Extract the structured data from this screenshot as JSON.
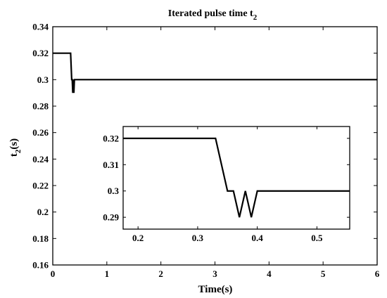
{
  "chart_data": [
    {
      "type": "line",
      "role": "main",
      "title": "Iterated pulse time t",
      "title_subscript": "2",
      "xlabel": "Time(s)",
      "ylabel": "t",
      "ylabel_subscript": "2",
      "ylabel_suffix": "(s)",
      "xlim": [
        0,
        6
      ],
      "ylim": [
        0.16,
        0.34
      ],
      "xticks": [
        0,
        1,
        2,
        3,
        4,
        5,
        6
      ],
      "xtick_labels": [
        "0",
        "1",
        "2",
        "3",
        "4",
        "5",
        "6"
      ],
      "yticks": [
        0.16,
        0.18,
        0.2,
        0.22,
        0.24,
        0.26,
        0.28,
        0.3,
        0.32,
        0.34
      ],
      "ytick_labels": [
        "0.16",
        "0.18",
        "0.2",
        "0.22",
        "0.24",
        "0.26",
        "0.28",
        "0.3",
        "0.32",
        "0.34"
      ],
      "grid": false,
      "series": [
        {
          "x": [
            0,
            0.33,
            0.35,
            0.36,
            0.37,
            0.38,
            0.39,
            0.4,
            6
          ],
          "y": [
            0.32,
            0.32,
            0.3,
            0.3,
            0.29,
            0.3,
            0.29,
            0.3,
            0.3
          ]
        }
      ]
    },
    {
      "type": "line",
      "role": "inset",
      "xlim": [
        0.175,
        0.555
      ],
      "ylim": [
        0.2855,
        0.3245
      ],
      "xticks": [
        0.2,
        0.3,
        0.4,
        0.5
      ],
      "xtick_labels": [
        "0.2",
        "0.3",
        "0.4",
        "0.5"
      ],
      "yticks": [
        0.29,
        0.3,
        0.31,
        0.32
      ],
      "ytick_labels": [
        "0.29",
        "0.3",
        "0.31",
        "0.32"
      ],
      "grid": false,
      "series": [
        {
          "x": [
            0.175,
            0.33,
            0.35,
            0.36,
            0.37,
            0.38,
            0.39,
            0.4,
            0.555
          ],
          "y": [
            0.32,
            0.32,
            0.3,
            0.3,
            0.29,
            0.3,
            0.29,
            0.3,
            0.3
          ]
        }
      ]
    }
  ]
}
